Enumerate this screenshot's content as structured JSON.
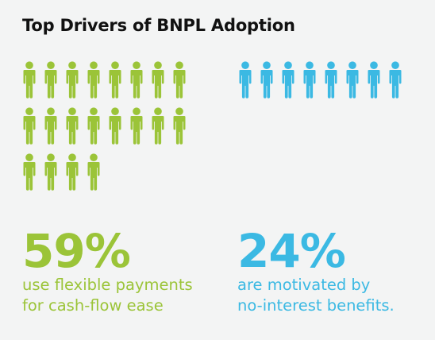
{
  "colors": {
    "green": "#9bc438",
    "blue": "#3bb9e3",
    "title": "#111111",
    "background": "#f3f4f4"
  },
  "title": "Top Drivers of BNPL Adoption",
  "chart_data": {
    "type": "pictogram",
    "title": "Top Drivers of BNPL Adoption",
    "series": [
      {
        "value": 59,
        "unit": "%",
        "percent_label": "59%",
        "icon_count": 20,
        "icon": "person-icon",
        "description_lines": [
          "use flexible payments",
          "for cash-flow ease"
        ],
        "color": "#9bc438"
      },
      {
        "value": 24,
        "unit": "%",
        "percent_label": "24%",
        "icon_count": 8,
        "icon": "person-icon",
        "description_lines": [
          "are motivated by",
          "no-interest benefits."
        ],
        "color": "#3bb9e3"
      }
    ]
  }
}
